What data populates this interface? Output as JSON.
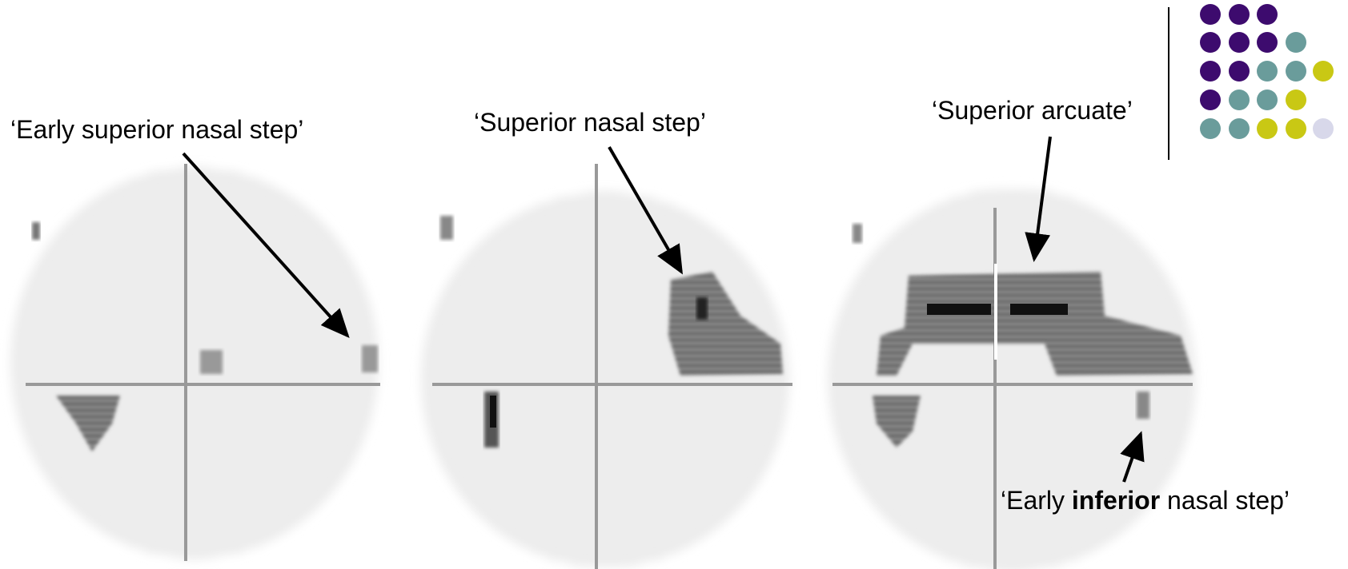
{
  "annotations": {
    "early_superior": "‘Early superior nasal step’",
    "superior": "‘Superior nasal step’",
    "arcuate": "‘Superior arcuate’",
    "early_inferior": {
      "prefix": "‘Early ",
      "bold": "inferior",
      "suffix": " nasal step’"
    }
  }
}
